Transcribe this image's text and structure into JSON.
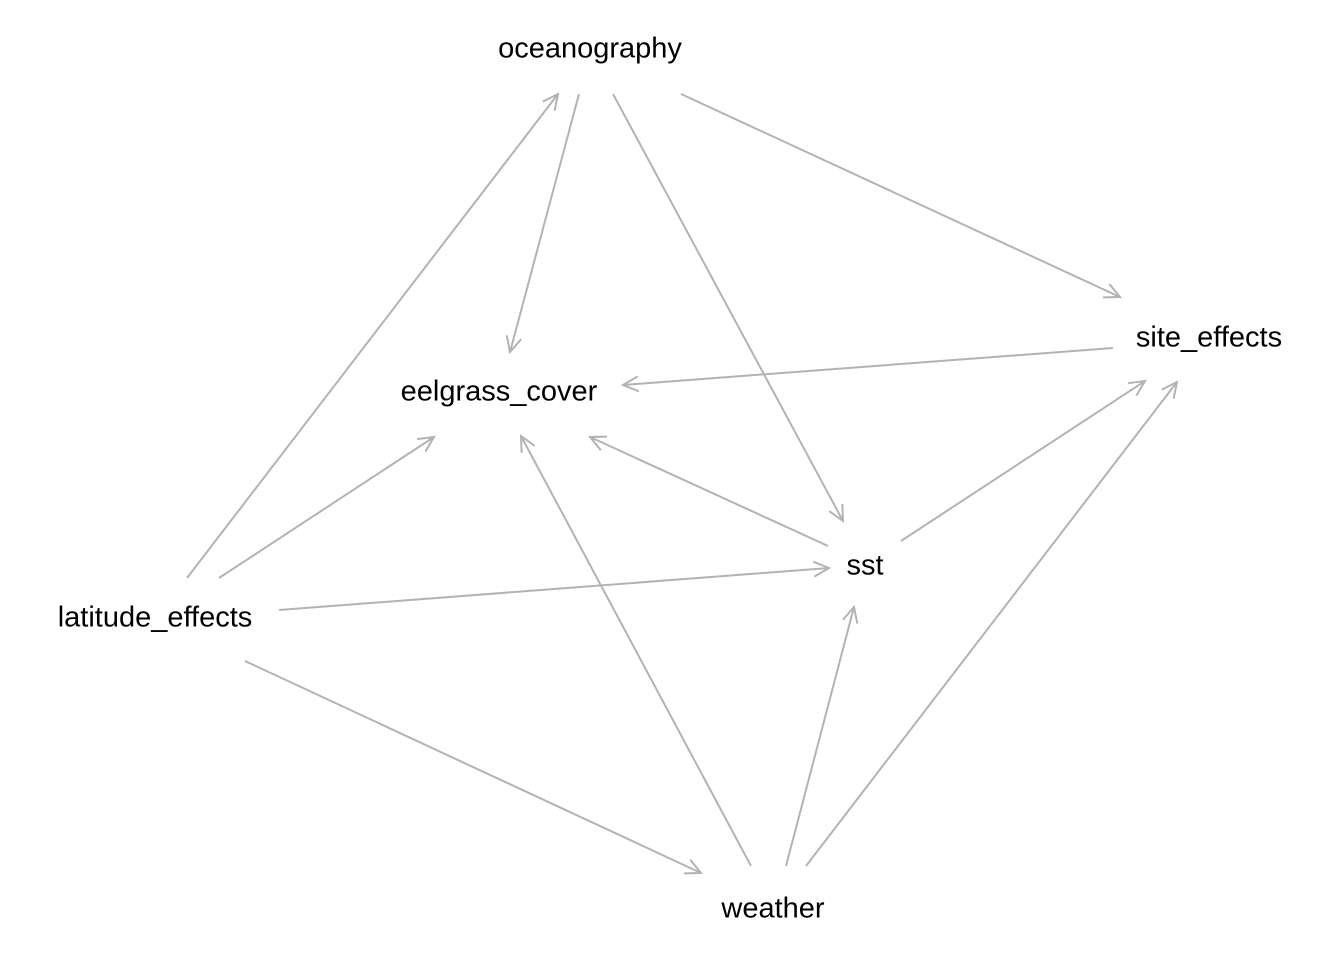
{
  "diagram": {
    "type": "directed-acyclic-graph",
    "edge_color": "#b3b3b3",
    "nodes": [
      {
        "id": "oceanography",
        "label": "oceanography"
      },
      {
        "id": "site_effects",
        "label": "site_effects"
      },
      {
        "id": "eelgrass_cover",
        "label": "eelgrass_cover"
      },
      {
        "id": "sst",
        "label": "sst"
      },
      {
        "id": "latitude_effects",
        "label": "latitude_effects"
      },
      {
        "id": "weather",
        "label": "weather"
      }
    ],
    "edges": [
      {
        "from": "oceanography",
        "to": "eelgrass_cover"
      },
      {
        "from": "oceanography",
        "to": "sst"
      },
      {
        "from": "oceanography",
        "to": "site_effects"
      },
      {
        "from": "site_effects",
        "to": "eelgrass_cover"
      },
      {
        "from": "sst",
        "to": "eelgrass_cover"
      },
      {
        "from": "sst",
        "to": "site_effects"
      },
      {
        "from": "latitude_effects",
        "to": "oceanography"
      },
      {
        "from": "latitude_effects",
        "to": "eelgrass_cover"
      },
      {
        "from": "latitude_effects",
        "to": "sst"
      },
      {
        "from": "latitude_effects",
        "to": "weather"
      },
      {
        "from": "weather",
        "to": "eelgrass_cover"
      },
      {
        "from": "weather",
        "to": "sst"
      },
      {
        "from": "weather",
        "to": "site_effects"
      }
    ]
  }
}
